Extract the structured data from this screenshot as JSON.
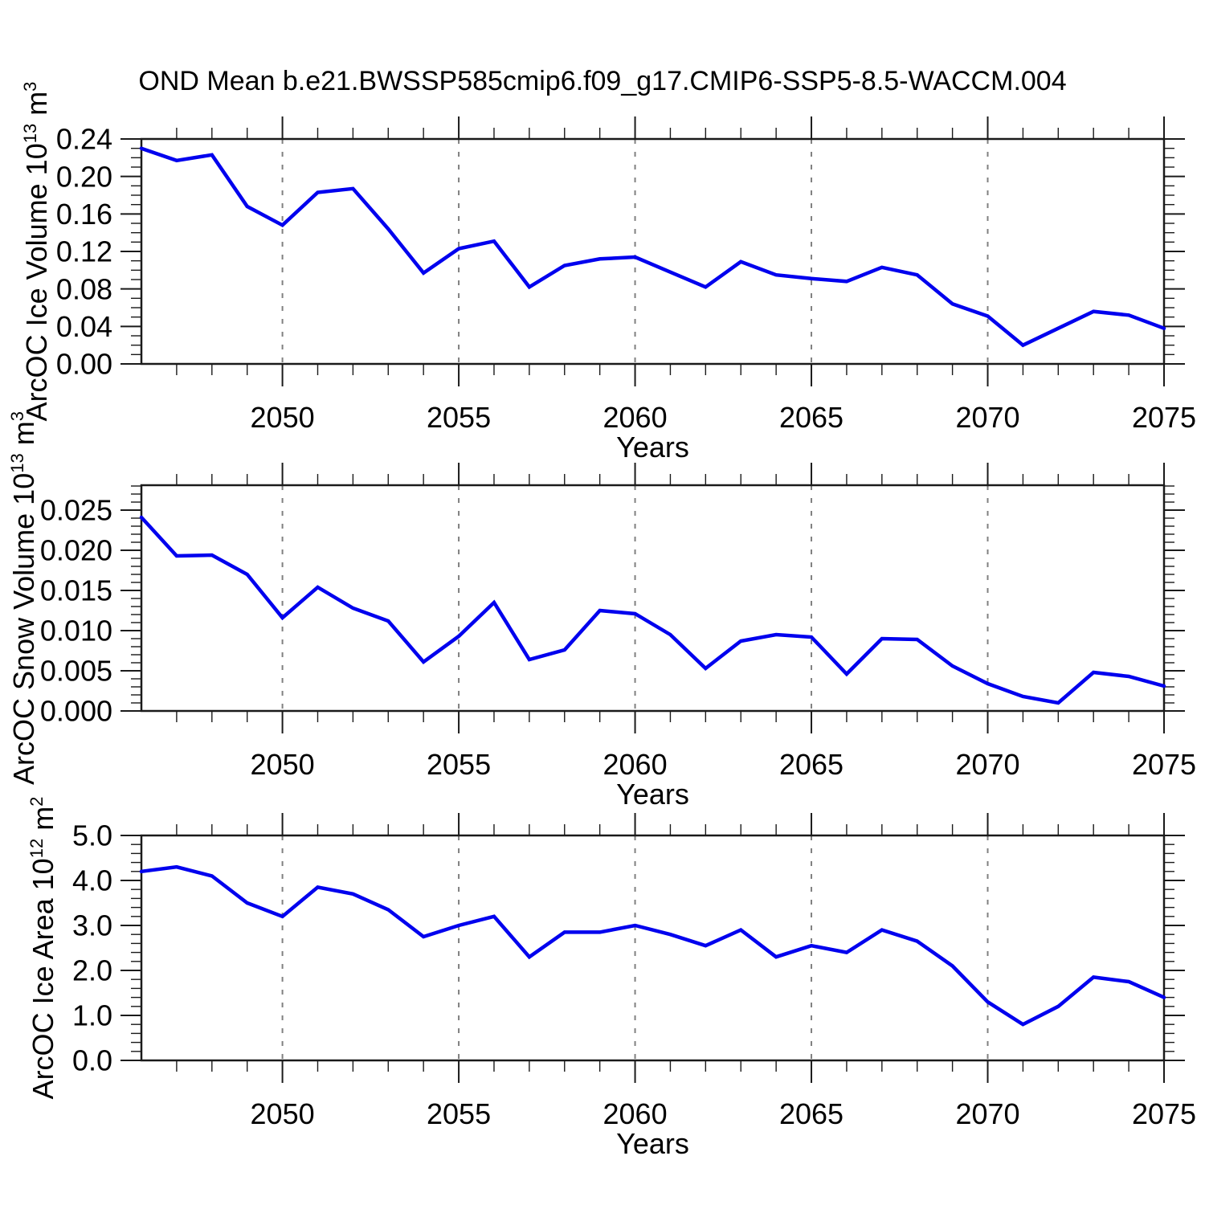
{
  "page": {
    "title": "OND Mean b.e21.BWSSP585cmip6.f09_g17.CMIP6-SSP5-8.5-WACCM.004"
  },
  "colors": {
    "line": "#0000ee",
    "grid": "#808080",
    "axis": "#1a1a1a",
    "background": "#ffffff"
  },
  "chart_data": [
    {
      "type": "line",
      "name": "ice-volume",
      "ylabel_parts": [
        {
          "t": "ArcOC Ice Volume 10"
        },
        {
          "t": "13",
          "sup": true
        },
        {
          "t": " m"
        },
        {
          "t": "3",
          "sup": true
        }
      ],
      "xlabel": "Years",
      "x": [
        2046,
        2047,
        2048,
        2049,
        2050,
        2051,
        2052,
        2053,
        2054,
        2055,
        2056,
        2057,
        2058,
        2059,
        2060,
        2061,
        2062,
        2063,
        2064,
        2065,
        2066,
        2067,
        2068,
        2069,
        2070,
        2071,
        2072,
        2073,
        2074,
        2075
      ],
      "values": [
        0.23,
        0.217,
        0.223,
        0.168,
        0.148,
        0.183,
        0.187,
        0.144,
        0.097,
        0.123,
        0.131,
        0.082,
        0.105,
        0.112,
        0.114,
        0.098,
        0.082,
        0.109,
        0.095,
        0.091,
        0.088,
        0.103,
        0.095,
        0.064,
        0.051,
        0.02,
        0.038,
        0.056,
        0.052,
        0.038
      ],
      "xlim": [
        2046,
        2075
      ],
      "ylim": [
        0,
        0.24
      ],
      "yticks": [
        {
          "v": 0.0,
          "label": "0.00"
        },
        {
          "v": 0.04,
          "label": "0.04"
        },
        {
          "v": 0.08,
          "label": "0.08"
        },
        {
          "v": 0.12,
          "label": "0.12"
        },
        {
          "v": 0.16,
          "label": "0.16"
        },
        {
          "v": 0.2,
          "label": "0.20"
        },
        {
          "v": 0.24,
          "label": "0.24"
        }
      ],
      "ytick_minor_step": 0.01,
      "xticks": [
        {
          "v": 2050,
          "label": "2050"
        },
        {
          "v": 2055,
          "label": "2055"
        },
        {
          "v": 2060,
          "label": "2060"
        },
        {
          "v": 2065,
          "label": "2065"
        },
        {
          "v": 2070,
          "label": "2070"
        },
        {
          "v": 2075,
          "label": "2075"
        }
      ],
      "xtick_minor_step": 1,
      "gridlines_at": [
        2050,
        2055,
        2060,
        2065,
        2070
      ],
      "grid": true,
      "legend": "none"
    },
    {
      "type": "line",
      "name": "snow-volume",
      "ylabel_parts": [
        {
          "t": "ArcOC Snow Volume 10"
        },
        {
          "t": "13",
          "sup": true
        },
        {
          "t": " m"
        },
        {
          "t": "3",
          "sup": true
        }
      ],
      "xlabel": "Years",
      "x": [
        2046,
        2047,
        2048,
        2049,
        2050,
        2051,
        2052,
        2053,
        2054,
        2055,
        2056,
        2057,
        2058,
        2059,
        2060,
        2061,
        2062,
        2063,
        2064,
        2065,
        2066,
        2067,
        2068,
        2069,
        2070,
        2071,
        2072,
        2073,
        2074,
        2075
      ],
      "values": [
        0.0241,
        0.0193,
        0.0194,
        0.017,
        0.0116,
        0.0154,
        0.0128,
        0.0112,
        0.0061,
        0.0093,
        0.0135,
        0.0064,
        0.0076,
        0.0125,
        0.0121,
        0.0095,
        0.0053,
        0.0087,
        0.0095,
        0.0092,
        0.0046,
        0.009,
        0.0089,
        0.0056,
        0.0034,
        0.0018,
        0.001,
        0.0048,
        0.0043,
        0.0031
      ],
      "xlim": [
        2046,
        2075
      ],
      "ylim": [
        0,
        0.0281
      ],
      "yticks": [
        {
          "v": 0.0,
          "label": "0.000"
        },
        {
          "v": 0.005,
          "label": "0.005"
        },
        {
          "v": 0.01,
          "label": "0.010"
        },
        {
          "v": 0.015,
          "label": "0.015"
        },
        {
          "v": 0.02,
          "label": "0.020"
        },
        {
          "v": 0.025,
          "label": "0.025"
        }
      ],
      "ytick_minor_step": 0.001,
      "xticks": [
        {
          "v": 2050,
          "label": "2050"
        },
        {
          "v": 2055,
          "label": "2055"
        },
        {
          "v": 2060,
          "label": "2060"
        },
        {
          "v": 2065,
          "label": "2065"
        },
        {
          "v": 2070,
          "label": "2070"
        },
        {
          "v": 2075,
          "label": "2075"
        }
      ],
      "xtick_minor_step": 1,
      "gridlines_at": [
        2050,
        2055,
        2060,
        2065,
        2070
      ],
      "grid": true,
      "legend": "none"
    },
    {
      "type": "line",
      "name": "ice-area",
      "ylabel_parts": [
        {
          "t": "ArcOC Ice Area 10"
        },
        {
          "t": "12",
          "sup": true
        },
        {
          "t": " m"
        },
        {
          "t": "2",
          "sup": true
        }
      ],
      "xlabel": "Years",
      "x": [
        2046,
        2047,
        2048,
        2049,
        2050,
        2051,
        2052,
        2053,
        2054,
        2055,
        2056,
        2057,
        2058,
        2059,
        2060,
        2061,
        2062,
        2063,
        2064,
        2065,
        2066,
        2067,
        2068,
        2069,
        2070,
        2071,
        2072,
        2073,
        2074,
        2075
      ],
      "values": [
        4.2,
        4.3,
        4.1,
        3.5,
        3.2,
        3.85,
        3.7,
        3.35,
        2.75,
        3.0,
        3.2,
        2.3,
        2.85,
        2.85,
        3.0,
        2.8,
        2.55,
        2.9,
        2.3,
        2.55,
        2.4,
        2.9,
        2.65,
        2.1,
        1.3,
        0.8,
        1.2,
        1.85,
        1.75,
        1.4
      ],
      "xlim": [
        2046,
        2075
      ],
      "ylim": [
        0,
        5.0
      ],
      "yticks": [
        {
          "v": 0.0,
          "label": "0.0"
        },
        {
          "v": 1.0,
          "label": "1.0"
        },
        {
          "v": 2.0,
          "label": "2.0"
        },
        {
          "v": 3.0,
          "label": "3.0"
        },
        {
          "v": 4.0,
          "label": "4.0"
        },
        {
          "v": 5.0,
          "label": "5.0"
        }
      ],
      "ytick_minor_step": 0.2,
      "xticks": [
        {
          "v": 2050,
          "label": "2050"
        },
        {
          "v": 2055,
          "label": "2055"
        },
        {
          "v": 2060,
          "label": "2060"
        },
        {
          "v": 2065,
          "label": "2065"
        },
        {
          "v": 2070,
          "label": "2070"
        },
        {
          "v": 2075,
          "label": "2075"
        }
      ],
      "xtick_minor_step": 1,
      "gridlines_at": [
        2050,
        2055,
        2060,
        2065,
        2070
      ],
      "grid": true,
      "legend": "none"
    }
  ]
}
